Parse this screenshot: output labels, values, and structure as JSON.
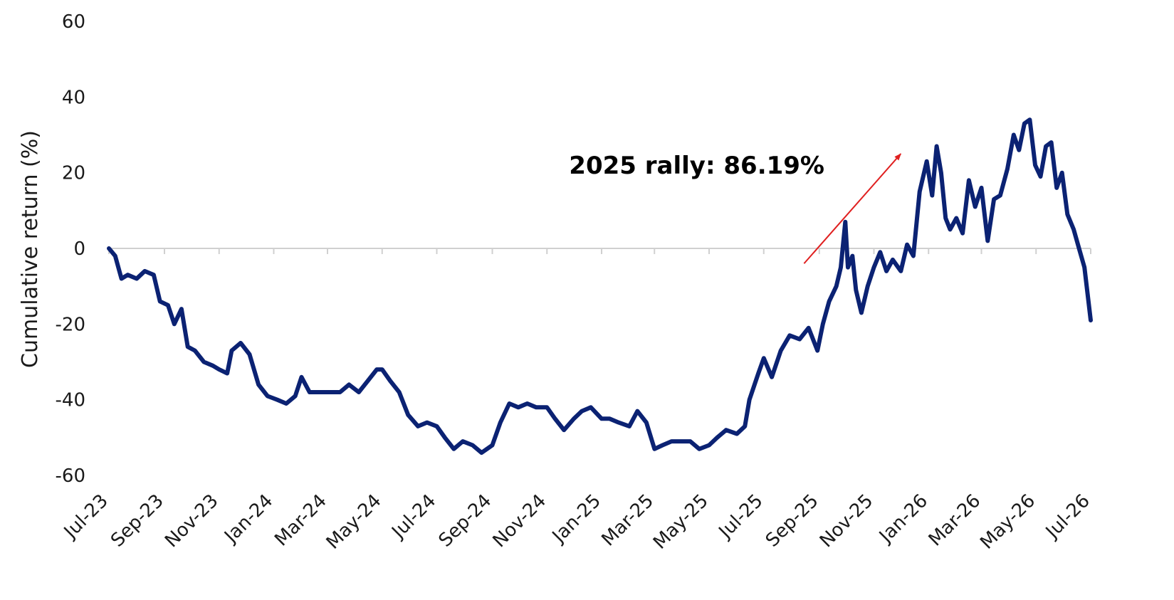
{
  "chart_data": {
    "type": "line",
    "title": "",
    "xlabel": "",
    "ylabel": "Cumulative return (%)",
    "ylim": [
      -60,
      60
    ],
    "yticks": [
      60,
      40,
      20,
      0,
      -20,
      -40,
      -60
    ],
    "xlim": [
      "2023-07-01",
      "2026-07-01"
    ],
    "xticks": [
      {
        "date": "2023-07-01",
        "label": "Jul-23"
      },
      {
        "date": "2023-09-01",
        "label": "Sep-23"
      },
      {
        "date": "2023-11-01",
        "label": "Nov-23"
      },
      {
        "date": "2024-01-01",
        "label": "Jan-24"
      },
      {
        "date": "2024-03-01",
        "label": "Mar-24"
      },
      {
        "date": "2024-05-01",
        "label": "May-24"
      },
      {
        "date": "2024-07-01",
        "label": "Jul-24"
      },
      {
        "date": "2024-09-01",
        "label": "Sep-24"
      },
      {
        "date": "2024-11-01",
        "label": "Nov-24"
      },
      {
        "date": "2025-01-01",
        "label": "Jan-25"
      },
      {
        "date": "2025-03-01",
        "label": "Mar-25"
      },
      {
        "date": "2025-05-01",
        "label": "May-25"
      },
      {
        "date": "2025-07-01",
        "label": "Jul-25"
      },
      {
        "date": "2025-09-01",
        "label": "Sep-25"
      },
      {
        "date": "2025-11-01",
        "label": "Nov-25"
      },
      {
        "date": "2026-01-01",
        "label": "Jan-26"
      },
      {
        "date": "2026-03-01",
        "label": "Mar-26"
      },
      {
        "date": "2026-05-01",
        "label": "May-26"
      },
      {
        "date": "2026-07-01",
        "label": "Jul-26"
      }
    ],
    "grid": false,
    "zero_line": true,
    "series": [
      {
        "color": "#0b2273",
        "points": [
          [
            "2023-07-01",
            0
          ],
          [
            "2023-07-08",
            -2
          ],
          [
            "2023-07-15",
            -8
          ],
          [
            "2023-07-22",
            -7
          ],
          [
            "2023-08-01",
            -8
          ],
          [
            "2023-08-10",
            -6
          ],
          [
            "2023-08-20",
            -7
          ],
          [
            "2023-08-27",
            -14
          ],
          [
            "2023-09-05",
            -15
          ],
          [
            "2023-09-12",
            -20
          ],
          [
            "2023-09-20",
            -16
          ],
          [
            "2023-09-27",
            -26
          ],
          [
            "2023-10-05",
            -27
          ],
          [
            "2023-10-15",
            -30
          ],
          [
            "2023-10-25",
            -31
          ],
          [
            "2023-11-01",
            -32
          ],
          [
            "2023-11-10",
            -33
          ],
          [
            "2023-11-15",
            -27
          ],
          [
            "2023-11-25",
            -25
          ],
          [
            "2023-12-05",
            -28
          ],
          [
            "2023-12-15",
            -36
          ],
          [
            "2023-12-25",
            -39
          ],
          [
            "2024-01-05",
            -40
          ],
          [
            "2024-01-15",
            -41
          ],
          [
            "2024-01-25",
            -39
          ],
          [
            "2024-02-01",
            -34
          ],
          [
            "2024-02-10",
            -38
          ],
          [
            "2024-02-20",
            -38
          ],
          [
            "2024-03-01",
            -38
          ],
          [
            "2024-03-15",
            -38
          ],
          [
            "2024-03-25",
            -36
          ],
          [
            "2024-04-05",
            -38
          ],
          [
            "2024-04-15",
            -35
          ],
          [
            "2024-04-25",
            -32
          ],
          [
            "2024-05-01",
            -32
          ],
          [
            "2024-05-10",
            -35
          ],
          [
            "2024-05-20",
            -38
          ],
          [
            "2024-05-30",
            -44
          ],
          [
            "2024-06-10",
            -47
          ],
          [
            "2024-06-20",
            -46
          ],
          [
            "2024-07-01",
            -47
          ],
          [
            "2024-07-10",
            -50
          ],
          [
            "2024-07-20",
            -53
          ],
          [
            "2024-07-30",
            -51
          ],
          [
            "2024-08-10",
            -52
          ],
          [
            "2024-08-20",
            -54
          ],
          [
            "2024-09-01",
            -52
          ],
          [
            "2024-09-10",
            -46
          ],
          [
            "2024-09-20",
            -41
          ],
          [
            "2024-09-30",
            -42
          ],
          [
            "2024-10-10",
            -41
          ],
          [
            "2024-10-20",
            -42
          ],
          [
            "2024-11-01",
            -42
          ],
          [
            "2024-11-10",
            -45
          ],
          [
            "2024-11-20",
            -48
          ],
          [
            "2024-12-01",
            -45
          ],
          [
            "2024-12-10",
            -43
          ],
          [
            "2024-12-20",
            -42
          ],
          [
            "2025-01-01",
            -45
          ],
          [
            "2025-01-10",
            -45
          ],
          [
            "2025-01-20",
            -46
          ],
          [
            "2025-02-01",
            -47
          ],
          [
            "2025-02-10",
            -43
          ],
          [
            "2025-02-20",
            -46
          ],
          [
            "2025-03-01",
            -53
          ],
          [
            "2025-03-10",
            -52
          ],
          [
            "2025-03-20",
            -51
          ],
          [
            "2025-04-01",
            -51
          ],
          [
            "2025-04-10",
            -51
          ],
          [
            "2025-04-20",
            -53
          ],
          [
            "2025-05-01",
            -52
          ],
          [
            "2025-05-10",
            -50
          ],
          [
            "2025-05-20",
            -48
          ],
          [
            "2025-06-01",
            -49
          ],
          [
            "2025-06-10",
            -47
          ],
          [
            "2025-06-15",
            -40
          ],
          [
            "2025-06-25",
            -33
          ],
          [
            "2025-07-01",
            -29
          ],
          [
            "2025-07-10",
            -34
          ],
          [
            "2025-07-20",
            -27
          ],
          [
            "2025-07-30",
            -23
          ],
          [
            "2025-08-10",
            -24
          ],
          [
            "2025-08-20",
            -21
          ],
          [
            "2025-08-30",
            -27
          ],
          [
            "2025-09-05",
            -20
          ],
          [
            "2025-09-12",
            -14
          ],
          [
            "2025-09-20",
            -10
          ],
          [
            "2025-09-25",
            -5
          ],
          [
            "2025-09-30",
            7
          ],
          [
            "2025-10-03",
            -5
          ],
          [
            "2025-10-08",
            -2
          ],
          [
            "2025-10-12",
            -11
          ],
          [
            "2025-10-18",
            -17
          ],
          [
            "2025-10-25",
            -10
          ],
          [
            "2025-11-01",
            -5
          ],
          [
            "2025-11-08",
            -1
          ],
          [
            "2025-11-15",
            -6
          ],
          [
            "2025-11-22",
            -3
          ],
          [
            "2025-12-01",
            -6
          ],
          [
            "2025-12-08",
            1
          ],
          [
            "2025-12-15",
            -2
          ],
          [
            "2025-12-22",
            15
          ],
          [
            "2025-12-30",
            23
          ],
          [
            "2026-01-05",
            14
          ],
          [
            "2026-01-10",
            27
          ],
          [
            "2026-01-15",
            20
          ],
          [
            "2026-01-20",
            8
          ],
          [
            "2026-01-25",
            5
          ],
          [
            "2026-02-01",
            8
          ],
          [
            "2026-02-08",
            4
          ],
          [
            "2026-02-15",
            18
          ],
          [
            "2026-02-22",
            11
          ],
          [
            "2026-03-01",
            16
          ],
          [
            "2026-03-08",
            2
          ],
          [
            "2026-03-15",
            13
          ],
          [
            "2026-03-22",
            14
          ],
          [
            "2026-03-30",
            21
          ],
          [
            "2026-04-06",
            30
          ],
          [
            "2026-04-12",
            26
          ],
          [
            "2026-04-18",
            33
          ],
          [
            "2026-04-24",
            34
          ],
          [
            "2026-04-30",
            22
          ],
          [
            "2026-05-06",
            19
          ],
          [
            "2026-05-12",
            27
          ],
          [
            "2026-05-18",
            28
          ],
          [
            "2026-05-24",
            16
          ],
          [
            "2026-05-30",
            20
          ],
          [
            "2026-06-05",
            9
          ],
          [
            "2026-06-12",
            5
          ],
          [
            "2026-06-18",
            0
          ],
          [
            "2026-06-24",
            -5
          ],
          [
            "2026-07-01",
            -19
          ]
        ]
      }
    ],
    "annotations": [
      {
        "text": "2025 rally: 86.19%",
        "arrow_color": "#e02020",
        "arrow_from": [
          "2025-08-15",
          -4
        ],
        "arrow_to": [
          "2025-12-01",
          25
        ]
      }
    ]
  }
}
